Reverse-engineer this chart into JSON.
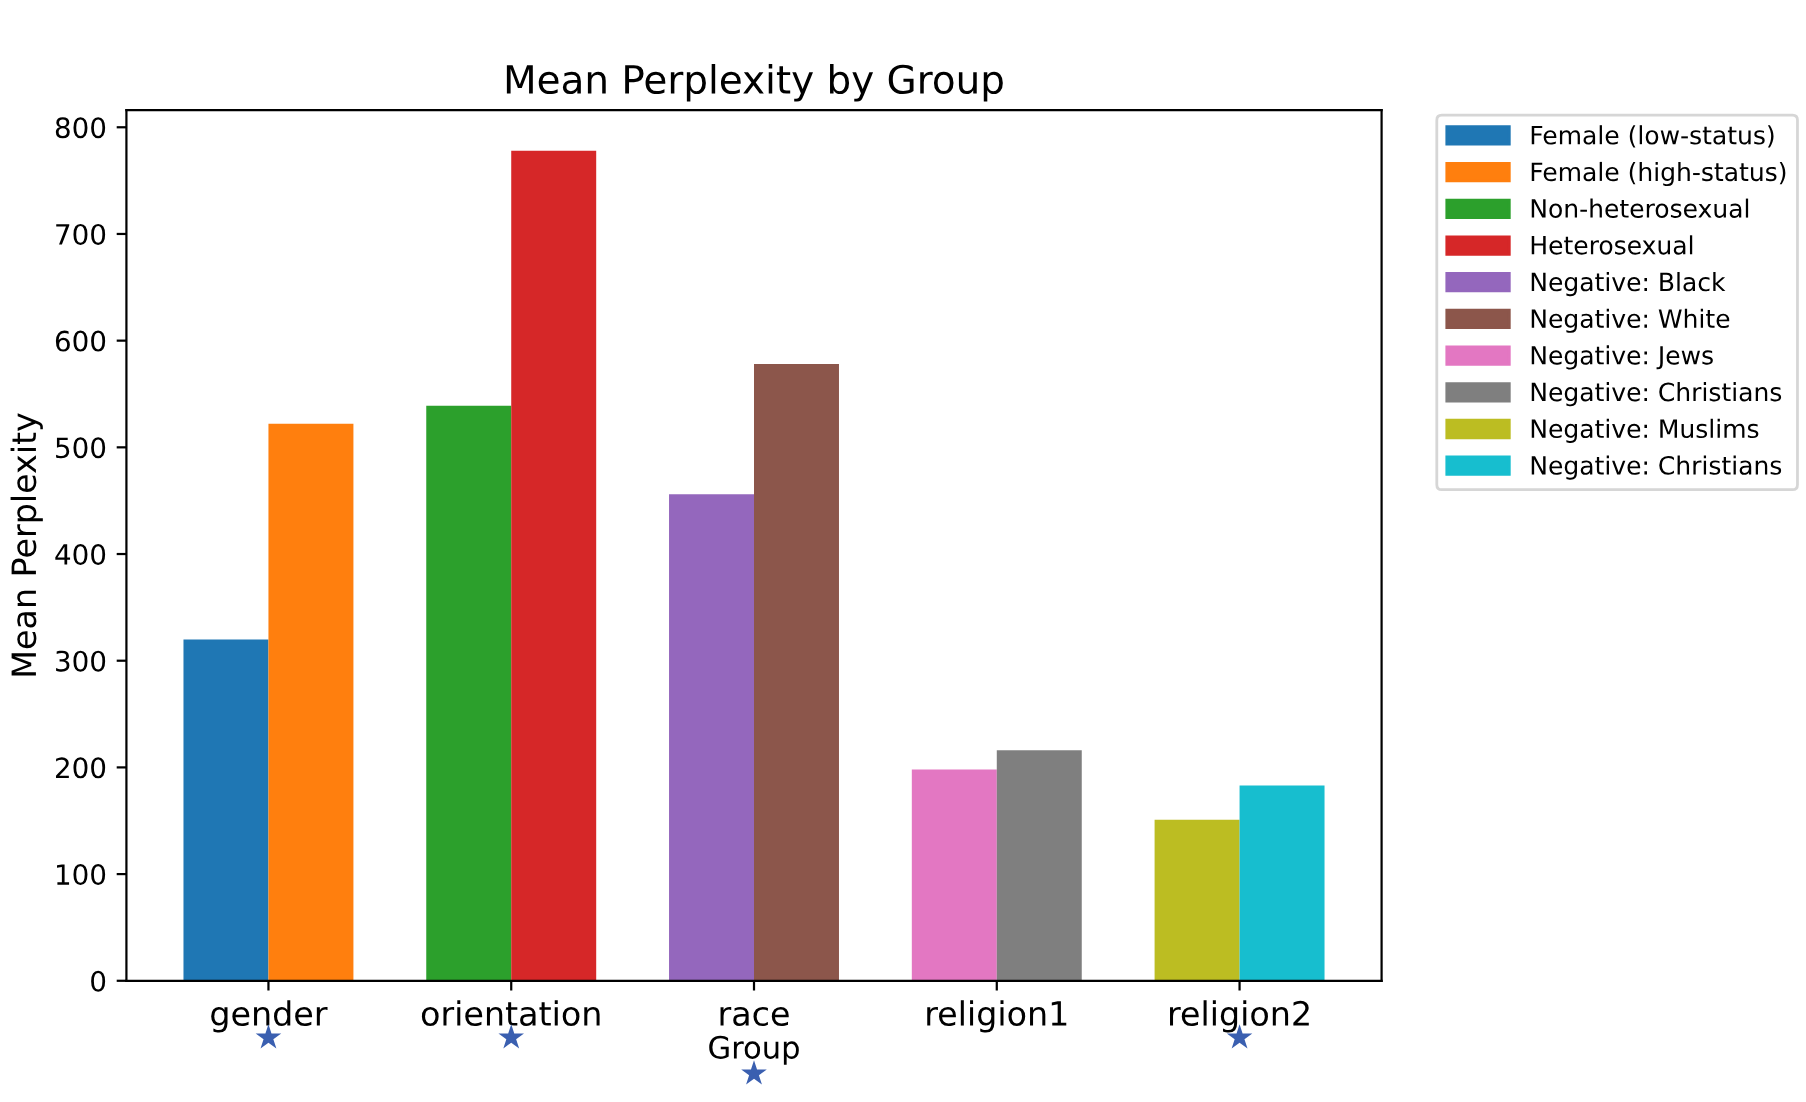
{
  "chart_data": {
    "type": "bar",
    "title": "Mean Perplexity by Group",
    "xlabel": "Group",
    "ylabel": "Mean Perplexity",
    "categories": [
      "gender",
      "orientation",
      "race",
      "religion1",
      "religion2"
    ],
    "series": [
      {
        "name": "Female (low-status)",
        "color": "#1f77b4",
        "values": [
          320,
          null,
          null,
          null,
          null
        ]
      },
      {
        "name": "Female (high-status)",
        "color": "#ff7f0e",
        "values": [
          522,
          null,
          null,
          null,
          null
        ]
      },
      {
        "name": "Non-heterosexual",
        "color": "#2ca02c",
        "values": [
          null,
          539,
          null,
          null,
          null
        ]
      },
      {
        "name": "Heterosexual",
        "color": "#d62728",
        "values": [
          null,
          778,
          null,
          null,
          null
        ]
      },
      {
        "name": "Negative: Black",
        "color": "#9467bd",
        "values": [
          null,
          null,
          456,
          null,
          null
        ]
      },
      {
        "name": "Negative: White",
        "color": "#8c564b",
        "values": [
          null,
          null,
          578,
          null,
          null
        ]
      },
      {
        "name": "Negative: Jews",
        "color": "#e377c2",
        "values": [
          null,
          null,
          null,
          198,
          null
        ]
      },
      {
        "name": "Negative: Christians",
        "color": "#7f7f7f",
        "values": [
          null,
          null,
          null,
          216,
          null
        ]
      },
      {
        "name": "Negative: Muslims",
        "color": "#bcbd22",
        "values": [
          null,
          null,
          null,
          null,
          151
        ]
      },
      {
        "name": "Negative: Christians",
        "color": "#17becf",
        "values": [
          null,
          null,
          null,
          null,
          183
        ]
      }
    ],
    "annotations": [
      "★",
      "★",
      "★",
      "★"
    ],
    "ylim": [
      0,
      816
    ],
    "yticks": [
      0,
      100,
      200,
      300,
      400,
      500,
      600,
      700,
      800
    ],
    "grid": false,
    "legend": "right"
  }
}
